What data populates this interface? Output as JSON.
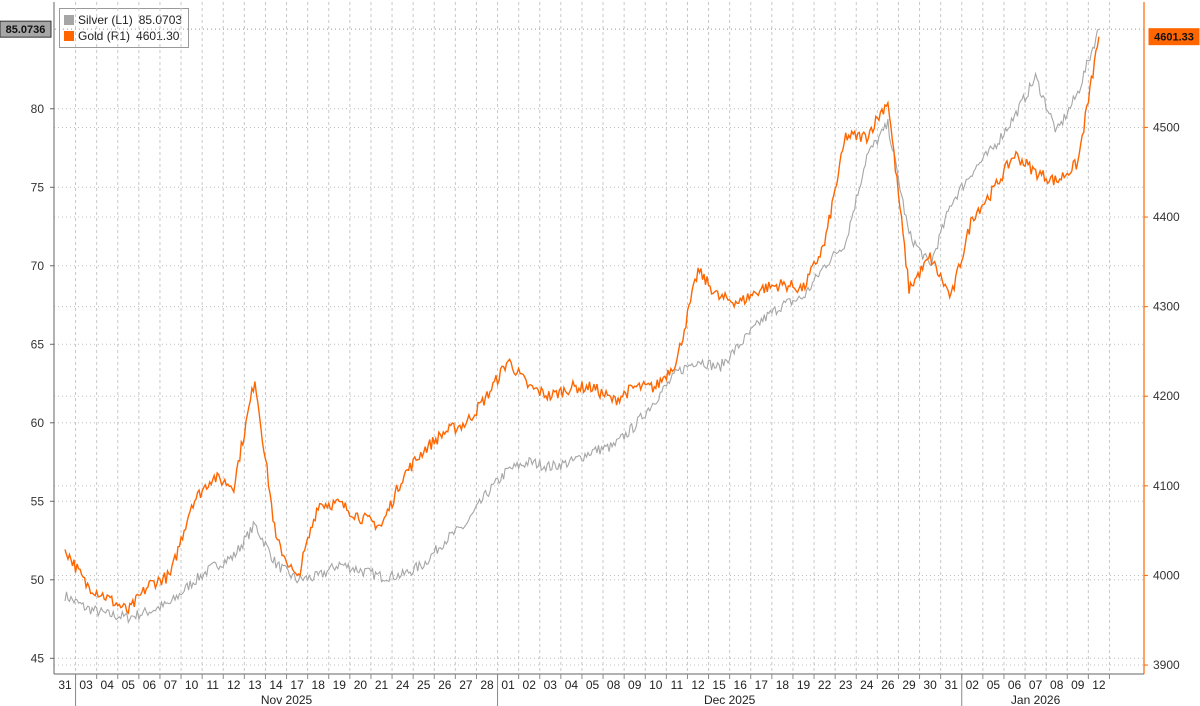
{
  "legend": [
    {
      "name": "Silver",
      "axis": "(L1)",
      "value": "85.0703",
      "color": "#a6a6a6"
    },
    {
      "name": "Gold",
      "axis": "(R1)",
      "value": "4601.30",
      "color": "#ff6600"
    }
  ],
  "badges": {
    "left": "85.0736",
    "right": "4601.33"
  },
  "chart_data": {
    "type": "line",
    "title": "",
    "left_axis": {
      "ticks": [
        45,
        50,
        55,
        60,
        65,
        70,
        75,
        80
      ],
      "ylim": [
        44,
        86.8
      ],
      "labels": [
        "45",
        "50",
        "55",
        "60",
        "65",
        "70",
        "75",
        "80"
      ]
    },
    "right_axis": {
      "ticks": [
        3900,
        4000,
        4100,
        4200,
        4300,
        4400,
        4500
      ],
      "ylim": [
        3890,
        4640
      ],
      "labels": [
        "3900",
        "4000",
        "4100",
        "4200",
        "4300",
        "4400",
        "4500"
      ],
      "color": "#ff6600"
    },
    "x": [
      "31",
      "03",
      "04",
      "05",
      "06",
      "07",
      "10",
      "11",
      "12",
      "13",
      "14",
      "17",
      "18",
      "19",
      "20",
      "21",
      "24",
      "25",
      "26",
      "27",
      "28",
      "01",
      "02",
      "03",
      "04",
      "05",
      "08",
      "09",
      "10",
      "11",
      "12",
      "15",
      "16",
      "17",
      "18",
      "19",
      "22",
      "23",
      "24",
      "26",
      "29",
      "30",
      "31",
      "02",
      "05",
      "06",
      "07",
      "08",
      "09",
      "12"
    ],
    "month_labels": [
      {
        "label": "Nov 2025",
        "start": 1,
        "end": 20
      },
      {
        "label": "Dec 2025",
        "start": 21,
        "end": 42
      },
      {
        "label": "Jan 2026",
        "start": 43,
        "end": 49
      }
    ],
    "grid": true,
    "series": [
      {
        "name": "Silver",
        "axis": "left",
        "color": "#a6a6a6",
        "values": [
          49.0,
          48.2,
          47.8,
          47.6,
          48.0,
          48.5,
          49.8,
          50.8,
          51.5,
          53.5,
          51.0,
          50.0,
          50.2,
          51.0,
          50.6,
          50.2,
          50.3,
          51.0,
          52.5,
          53.5,
          55.5,
          57.0,
          57.5,
          57.2,
          57.5,
          58.2,
          58.5,
          59.8,
          61.5,
          63.2,
          64.0,
          63.5,
          65.0,
          66.5,
          67.5,
          68.0,
          70.0,
          71.5,
          77.0,
          79.0,
          72.0,
          70.0,
          74.0,
          76.0,
          77.5,
          79.5,
          82.0,
          78.5,
          81.0,
          85.07
        ]
      },
      {
        "name": "Gold",
        "axis": "right",
        "color": "#ff6600",
        "values": [
          4030,
          3990,
          3975,
          3960,
          3990,
          4000,
          4080,
          4110,
          4100,
          4220,
          4040,
          3995,
          4080,
          4080,
          4065,
          4055,
          4110,
          4140,
          4160,
          4170,
          4200,
          4240,
          4210,
          4200,
          4210,
          4210,
          4195,
          4210,
          4210,
          4240,
          4340,
          4310,
          4305,
          4320,
          4325,
          4320,
          4370,
          4490,
          4490,
          4530,
          4320,
          4355,
          4310,
          4400,
          4430,
          4470,
          4450,
          4440,
          4460,
          4601.3
        ]
      }
    ]
  }
}
